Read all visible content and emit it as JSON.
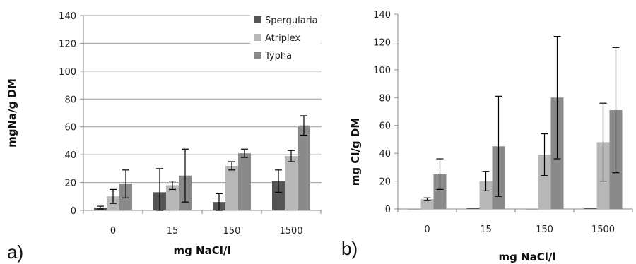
{
  "chart_data": [
    {
      "type": "bar",
      "panel_label": "a)",
      "categories": [
        "0",
        "15",
        "150",
        "1500"
      ],
      "xlabel": "mg NaCl/l",
      "ylabel": "mgNa/g DM",
      "ylim": [
        0,
        140
      ],
      "yticks": [
        "0",
        "20",
        "40",
        "60",
        "80",
        "100",
        "120",
        "140"
      ],
      "grid": true,
      "legend": "top-right",
      "series": [
        {
          "name": "Spergularia",
          "color": "#555555",
          "values": [
            2,
            13,
            6,
            21
          ],
          "errors": [
            1,
            17,
            6,
            8
          ]
        },
        {
          "name": "Atriplex",
          "color": "#b8b8b8",
          "values": [
            10,
            18,
            32,
            39
          ],
          "errors": [
            5,
            3,
            3,
            4
          ]
        },
        {
          "name": "Typha",
          "color": "#8a8a8a",
          "values": [
            19,
            25,
            41,
            61
          ],
          "errors": [
            10,
            19,
            3,
            7
          ]
        }
      ]
    },
    {
      "type": "bar",
      "panel_label": "b)",
      "categories": [
        "0",
        "15",
        "150",
        "1500"
      ],
      "xlabel": "mg NaCl/l",
      "ylabel": "mg Cl/g DM",
      "ylim": [
        0,
        140
      ],
      "yticks": [
        "0",
        "20",
        "40",
        "60",
        "80",
        "100",
        "120",
        "140"
      ],
      "grid": false,
      "legend": "none",
      "series": [
        {
          "color": "#555555",
          "values": [
            0,
            0.5,
            0,
            0.5
          ],
          "errors": [
            0,
            0,
            0,
            0
          ]
        },
        {
          "color": "#b8b8b8",
          "values": [
            7,
            20,
            39,
            48
          ],
          "errors": [
            1,
            7,
            15,
            28
          ]
        },
        {
          "color": "#8a8a8a",
          "values": [
            25,
            45,
            80,
            71
          ],
          "errors": [
            11,
            36,
            44,
            45
          ]
        }
      ]
    }
  ]
}
